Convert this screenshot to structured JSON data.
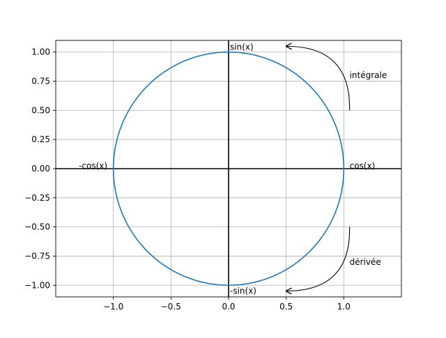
{
  "chart_data": {
    "type": "line",
    "title": "",
    "xlabel": "",
    "ylabel": "",
    "xlim": [
      -1.5,
      1.5
    ],
    "ylim": [
      -1.1,
      1.1
    ],
    "grid": true,
    "x_ticks": [
      -1.0,
      -0.5,
      0.0,
      0.5,
      1.0
    ],
    "x_tick_labels": [
      "−1.0",
      "−0.5",
      "0.0",
      "0.5",
      "1.0"
    ],
    "y_ticks": [
      1.0,
      0.75,
      0.5,
      0.25,
      0.0,
      -0.25,
      -0.5,
      -0.75,
      -1.0
    ],
    "y_tick_labels": [
      "1.00",
      "0.75",
      "0.50",
      "0.25",
      "0.00",
      "−0.25",
      "−0.50",
      "−0.75",
      "−1.00"
    ],
    "series": [
      {
        "shape": "unit-circle",
        "center": [
          0,
          0
        ],
        "radius": 1,
        "color": "#1f77b4"
      }
    ],
    "axis_lines_color": "#000000",
    "annotations": [
      {
        "id": "sin",
        "text": "sin(x)",
        "x": 0.0,
        "y": 1.02
      },
      {
        "id": "cos",
        "text": "cos(x)",
        "x": 1.05,
        "y": 0.0
      },
      {
        "id": "neg-sin",
        "text": "-sin(x)",
        "x": 0.0,
        "y": -1.05
      },
      {
        "id": "neg-cos",
        "text": "-cos(x)",
        "x": -1.3,
        "y": 0.0
      },
      {
        "id": "integrale",
        "text": "intégrale",
        "x": 1.05,
        "y": 0.8
      },
      {
        "id": "derivee",
        "text": "dérivée",
        "x": 1.05,
        "y": -0.8
      }
    ],
    "arrows": [
      {
        "id": "integrale-arrow",
        "from": [
          1.05,
          0.5
        ],
        "to": [
          0.5,
          1.05
        ],
        "curve": "counter-clockwise"
      },
      {
        "id": "derivee-arrow",
        "from": [
          1.05,
          -0.5
        ],
        "to": [
          0.5,
          -1.05
        ],
        "curve": "clockwise"
      }
    ]
  }
}
